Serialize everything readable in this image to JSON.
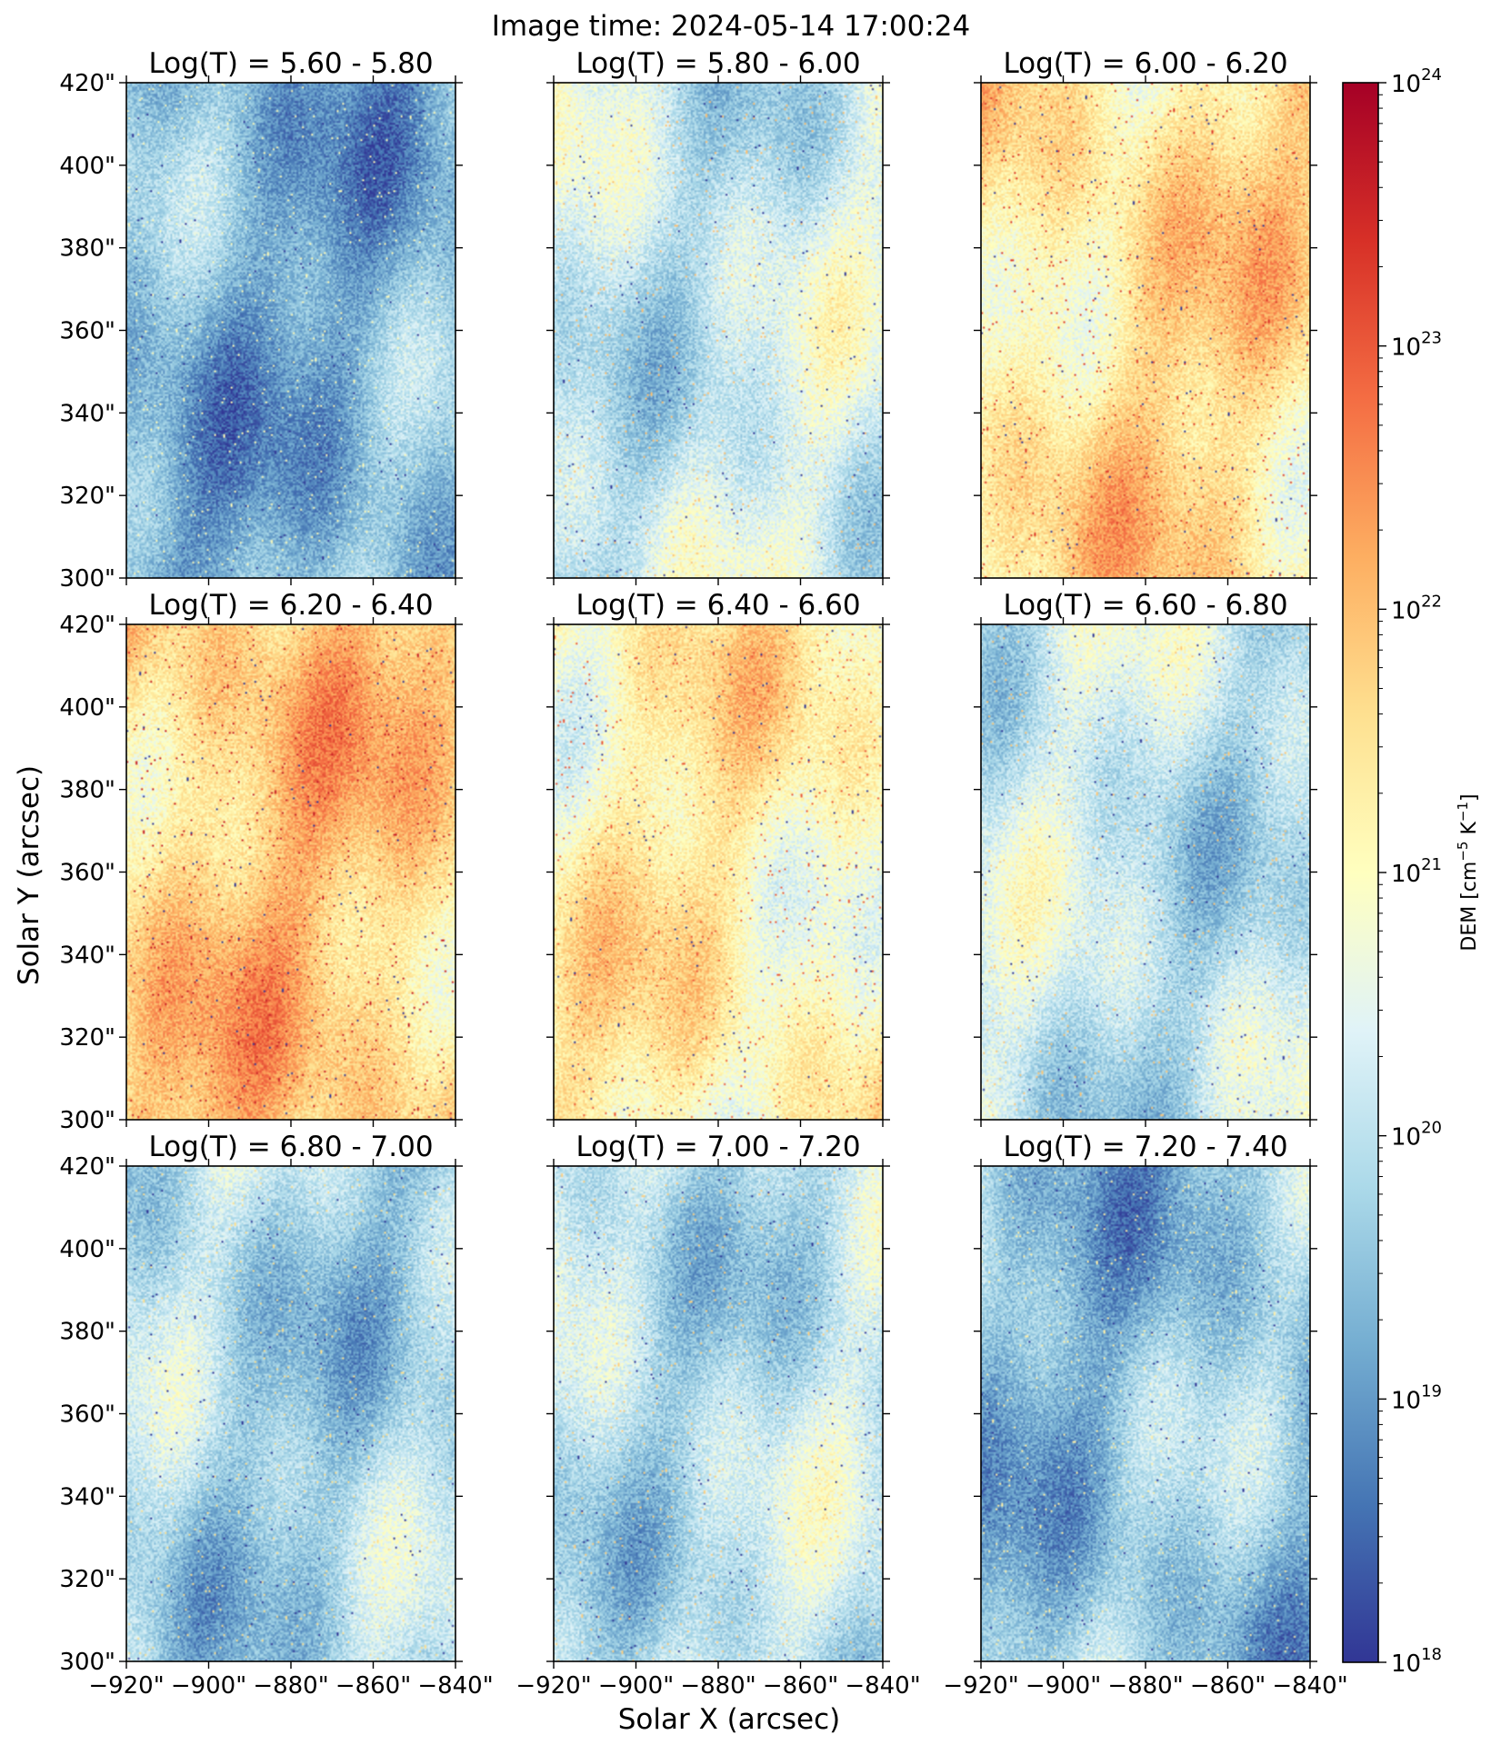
{
  "figure_title": "Image time: 2024-05-14 17:00:24",
  "xlabel": "Solar X (arcsec)",
  "ylabel": "Solar Y (arcsec)",
  "colors": {
    "colormap": [
      "#313695",
      "#4575b4",
      "#74add1",
      "#abd9e9",
      "#e0f3f8",
      "#ffffbf",
      "#fee090",
      "#fdae61",
      "#f46d43",
      "#d73027",
      "#a50026"
    ]
  },
  "chart_data": {
    "type": "heatmap",
    "title": "Image time: 2024-05-14 17:00:24",
    "xlabel": "Solar X (arcsec)",
    "ylabel": "Solar Y (arcsec)",
    "xlim": [
      -920,
      -840
    ],
    "ylim": [
      300,
      420
    ],
    "x_ticks": [
      -920,
      -900,
      -880,
      -860,
      -840
    ],
    "x_tick_labels": [
      "−920\"",
      "−900\"",
      "−880\"",
      "−860\"",
      "−840\""
    ],
    "y_ticks": [
      420,
      400,
      380,
      360,
      340,
      320,
      300
    ],
    "y_tick_labels": [
      "420\"",
      "400\"",
      "380\"",
      "360\"",
      "340\"",
      "320\"",
      "300\""
    ],
    "colorbar": {
      "label_parts": [
        "DEM [cm",
        "−5",
        " K",
        "−1",
        "]"
      ],
      "scale": "log",
      "range": [
        1e+18,
        1e+24
      ],
      "tick_base": "10",
      "tick_exponents": [
        "24",
        "23",
        "22",
        "21",
        "20",
        "19",
        "18"
      ]
    },
    "panels": [
      {
        "title": "Log(T) = 5.60 - 5.80",
        "typical_log10_dem": 19.3
      },
      {
        "title": "Log(T) = 5.80 - 6.00",
        "typical_log10_dem": 20.2
      },
      {
        "title": "Log(T) = 6.00 - 6.20",
        "typical_log10_dem": 21.5
      },
      {
        "title": "Log(T) = 6.20 - 6.40",
        "typical_log10_dem": 21.8
      },
      {
        "title": "Log(T) = 6.40 - 6.60",
        "typical_log10_dem": 21.2
      },
      {
        "title": "Log(T) = 6.60 - 6.80",
        "typical_log10_dem": 20.1
      },
      {
        "title": "Log(T) = 6.80 - 7.00",
        "typical_log10_dem": 19.8
      },
      {
        "title": "Log(T) = 7.00 - 7.20",
        "typical_log10_dem": 20.0
      },
      {
        "title": "Log(T) = 7.20 - 7.40",
        "typical_log10_dem": 19.5
      }
    ]
  }
}
